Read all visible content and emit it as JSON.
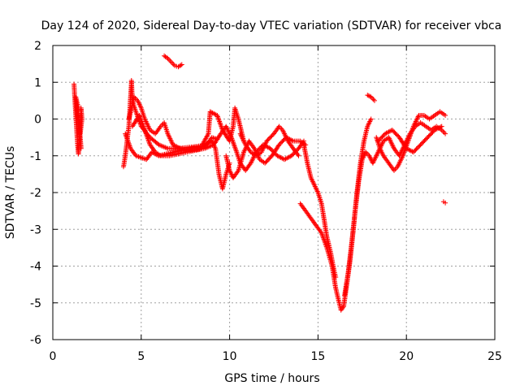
{
  "chart_data": {
    "type": "scatter",
    "title": "Day 124 of 2020, Sidereal Day-to-day VTEC variation (SDTVAR) for receiver vbca",
    "xlabel": "GPS time / hours",
    "ylabel": "SDTVAR / TECUs",
    "xlim": [
      0,
      25
    ],
    "ylim": [
      -6,
      2
    ],
    "xticks": [
      0,
      5,
      10,
      15,
      20,
      25
    ],
    "yticks": [
      -6,
      -5,
      -4,
      -3,
      -2,
      -1,
      0,
      1,
      2
    ],
    "grid": true,
    "marker": "+",
    "color": "#ff0000",
    "series": [
      {
        "name": "SDTVAR",
        "segments": [
          [
            [
              1.2,
              0.95
            ],
            [
              1.25,
              0.5
            ],
            [
              1.3,
              0.1
            ],
            [
              1.35,
              -0.3
            ],
            [
              1.4,
              -0.7
            ],
            [
              1.45,
              -0.95
            ],
            [
              1.5,
              -0.6
            ],
            [
              1.55,
              -0.1
            ],
            [
              1.6,
              0.3
            ],
            [
              1.65,
              0.0
            ],
            [
              1.55,
              -0.4
            ],
            [
              1.45,
              -0.2
            ],
            [
              1.35,
              0.2
            ],
            [
              1.3,
              0.6
            ],
            [
              1.4,
              0.4
            ],
            [
              1.6,
              -0.8
            ]
          ],
          [
            [
              4.0,
              -1.3
            ],
            [
              4.1,
              -1.0
            ],
            [
              4.2,
              -0.6
            ],
            [
              4.3,
              -0.2
            ],
            [
              4.35,
              0.2
            ],
            [
              4.4,
              0.6
            ],
            [
              4.45,
              1.05
            ],
            [
              4.5,
              0.5
            ],
            [
              4.7,
              0.2
            ],
            [
              5.0,
              -0.2
            ],
            [
              5.5,
              -0.5
            ],
            [
              6.0,
              -0.7
            ],
            [
              6.5,
              -0.8
            ],
            [
              7.0,
              -0.8
            ],
            [
              7.5,
              -0.78
            ],
            [
              8.0,
              -0.75
            ],
            [
              8.5,
              -0.72
            ],
            [
              9.0,
              -0.6
            ],
            [
              9.2,
              -0.8
            ],
            [
              9.4,
              -1.5
            ],
            [
              9.6,
              -1.9
            ],
            [
              9.8,
              -1.5
            ],
            [
              10.0,
              -1.2
            ]
          ],
          [
            [
              4.3,
              0.0
            ],
            [
              4.6,
              0.6
            ],
            [
              4.8,
              0.5
            ],
            [
              5.0,
              0.3
            ],
            [
              5.2,
              0.0
            ],
            [
              5.5,
              -0.3
            ],
            [
              5.8,
              -0.4
            ],
            [
              6.1,
              -0.2
            ],
            [
              6.3,
              -0.1
            ],
            [
              6.5,
              -0.4
            ],
            [
              6.8,
              -0.7
            ],
            [
              7.2,
              -0.8
            ],
            [
              7.8,
              -0.85
            ],
            [
              8.3,
              -0.82
            ],
            [
              8.7,
              -0.7
            ],
            [
              9.0,
              -0.5
            ],
            [
              9.3,
              -0.55
            ]
          ],
          [
            [
              4.1,
              -0.4
            ],
            [
              4.4,
              -0.8
            ],
            [
              4.7,
              -1.0
            ],
            [
              5.0,
              -1.05
            ],
            [
              5.3,
              -1.1
            ],
            [
              5.6,
              -0.9
            ],
            [
              6.0,
              -1.0
            ],
            [
              6.4,
              -0.95
            ],
            [
              6.8,
              -0.9
            ],
            [
              7.3,
              -0.85
            ],
            [
              7.8,
              -0.8
            ],
            [
              8.4,
              -0.75
            ],
            [
              8.8,
              -0.4
            ],
            [
              8.9,
              0.2
            ],
            [
              9.3,
              0.1
            ],
            [
              9.6,
              -0.3
            ],
            [
              10.0,
              -0.6
            ],
            [
              10.2,
              -0.2
            ],
            [
              10.3,
              0.3
            ],
            [
              10.5,
              0.0
            ],
            [
              10.8,
              -0.6
            ]
          ],
          [
            [
              4.5,
              -0.2
            ],
            [
              4.9,
              0.1
            ],
            [
              5.2,
              -0.3
            ],
            [
              5.5,
              -0.7
            ],
            [
              5.8,
              -0.9
            ],
            [
              6.1,
              -1.0
            ],
            [
              6.6,
              -1.0
            ],
            [
              7.1,
              -0.95
            ],
            [
              7.6,
              -0.9
            ],
            [
              8.1,
              -0.85
            ],
            [
              8.6,
              -0.8
            ],
            [
              9.1,
              -0.7
            ],
            [
              9.5,
              -0.4
            ],
            [
              9.8,
              -0.2
            ],
            [
              10.1,
              -0.5
            ],
            [
              10.4,
              -0.9
            ],
            [
              10.6,
              -1.2
            ],
            [
              10.9,
              -1.4
            ],
            [
              11.2,
              -1.2
            ],
            [
              11.5,
              -0.9
            ],
            [
              11.9,
              -0.7
            ],
            [
              12.3,
              -0.8
            ],
            [
              12.7,
              -1.0
            ],
            [
              13.1,
              -1.1
            ],
            [
              13.5,
              -1.0
            ],
            [
              13.9,
              -0.8
            ],
            [
              14.2,
              -0.6
            ]
          ],
          [
            [
              6.3,
              1.72
            ],
            [
              6.5,
              1.65
            ],
            [
              6.7,
              1.55
            ],
            [
              6.9,
              1.45
            ],
            [
              7.1,
              1.42
            ],
            [
              7.3,
              1.48
            ]
          ],
          [
            [
              9.8,
              -1.0
            ],
            [
              10.0,
              -1.4
            ],
            [
              10.2,
              -1.6
            ],
            [
              10.5,
              -1.4
            ],
            [
              10.8,
              -0.9
            ],
            [
              11.1,
              -0.6
            ],
            [
              11.4,
              -0.8
            ],
            [
              11.7,
              -1.1
            ],
            [
              12.0,
              -1.2
            ],
            [
              12.4,
              -1.0
            ],
            [
              12.8,
              -0.7
            ],
            [
              13.2,
              -0.5
            ],
            [
              13.6,
              -0.6
            ],
            [
              14.0,
              -0.6
            ],
            [
              14.3,
              -0.7
            ]
          ],
          [
            [
              10.6,
              -0.4
            ],
            [
              10.9,
              -0.7
            ],
            [
              11.2,
              -0.9
            ],
            [
              11.5,
              -1.0
            ],
            [
              11.8,
              -0.9
            ],
            [
              12.1,
              -0.6
            ],
            [
              12.5,
              -0.4
            ],
            [
              12.8,
              -0.2
            ],
            [
              13.0,
              -0.3
            ],
            [
              13.3,
              -0.6
            ],
            [
              13.6,
              -0.8
            ],
            [
              13.9,
              -1.0
            ]
          ],
          [
            [
              14.2,
              -0.7
            ],
            [
              14.4,
              -1.2
            ],
            [
              14.6,
              -1.6
            ],
            [
              14.8,
              -1.8
            ],
            [
              15.0,
              -2.0
            ],
            [
              15.2,
              -2.3
            ],
            [
              15.3,
              -2.6
            ],
            [
              15.5,
              -3.2
            ],
            [
              15.7,
              -3.6
            ],
            [
              15.9,
              -4.1
            ],
            [
              16.0,
              -4.3
            ]
          ],
          [
            [
              14.0,
              -2.3
            ],
            [
              14.3,
              -2.5
            ],
            [
              14.6,
              -2.7
            ],
            [
              14.9,
              -2.9
            ],
            [
              15.2,
              -3.1
            ],
            [
              15.5,
              -3.5
            ],
            [
              15.8,
              -4.0
            ],
            [
              16.0,
              -4.6
            ],
            [
              16.2,
              -5.0
            ],
            [
              16.3,
              -5.2
            ],
            [
              16.45,
              -5.1
            ],
            [
              16.6,
              -4.6
            ],
            [
              16.8,
              -3.9
            ],
            [
              17.0,
              -3.0
            ],
            [
              17.2,
              -2.0
            ],
            [
              17.4,
              -1.2
            ],
            [
              17.6,
              -0.6
            ],
            [
              17.8,
              -0.2
            ],
            [
              18.0,
              0.0
            ]
          ],
          [
            [
              16.5,
              -4.8
            ],
            [
              16.7,
              -4.2
            ],
            [
              16.9,
              -3.4
            ],
            [
              17.1,
              -2.5
            ],
            [
              17.3,
              -1.7
            ],
            [
              17.5,
              -1.1
            ],
            [
              17.7,
              -0.9
            ],
            [
              17.9,
              -1.0
            ],
            [
              18.1,
              -1.2
            ],
            [
              18.4,
              -0.9
            ],
            [
              18.7,
              -0.6
            ],
            [
              19.0,
              -0.5
            ],
            [
              19.3,
              -0.8
            ],
            [
              19.6,
              -1.0
            ],
            [
              19.9,
              -0.7
            ],
            [
              20.2,
              -0.4
            ],
            [
              20.5,
              -0.2
            ],
            [
              20.8,
              -0.1
            ],
            [
              21.1,
              -0.2
            ],
            [
              21.4,
              -0.3
            ],
            [
              21.7,
              -0.2
            ],
            [
              22.0,
              -0.3
            ],
            [
              22.2,
              -0.4
            ]
          ],
          [
            [
              17.8,
              0.65
            ],
            [
              18.0,
              0.6
            ],
            [
              18.2,
              0.5
            ]
          ],
          [
            [
              18.3,
              -0.5
            ],
            [
              18.5,
              -0.8
            ],
            [
              18.7,
              -1.0
            ],
            [
              19.0,
              -1.2
            ],
            [
              19.3,
              -1.4
            ],
            [
              19.5,
              -1.3
            ],
            [
              19.8,
              -1.0
            ],
            [
              20.1,
              -0.6
            ],
            [
              20.4,
              -0.2
            ],
            [
              20.7,
              0.1
            ],
            [
              21.0,
              0.1
            ],
            [
              21.3,
              0.0
            ],
            [
              21.6,
              0.1
            ],
            [
              21.9,
              0.2
            ],
            [
              22.2,
              0.1
            ]
          ],
          [
            [
              18.4,
              -0.6
            ],
            [
              18.8,
              -0.4
            ],
            [
              19.2,
              -0.3
            ],
            [
              19.6,
              -0.5
            ],
            [
              20.0,
              -0.8
            ],
            [
              20.4,
              -0.9
            ],
            [
              20.8,
              -0.7
            ],
            [
              21.2,
              -0.5
            ],
            [
              21.6,
              -0.3
            ],
            [
              22.0,
              -0.2
            ]
          ],
          [
            [
              22.1,
              -2.25
            ],
            [
              22.2,
              -2.28
            ]
          ]
        ]
      }
    ]
  }
}
